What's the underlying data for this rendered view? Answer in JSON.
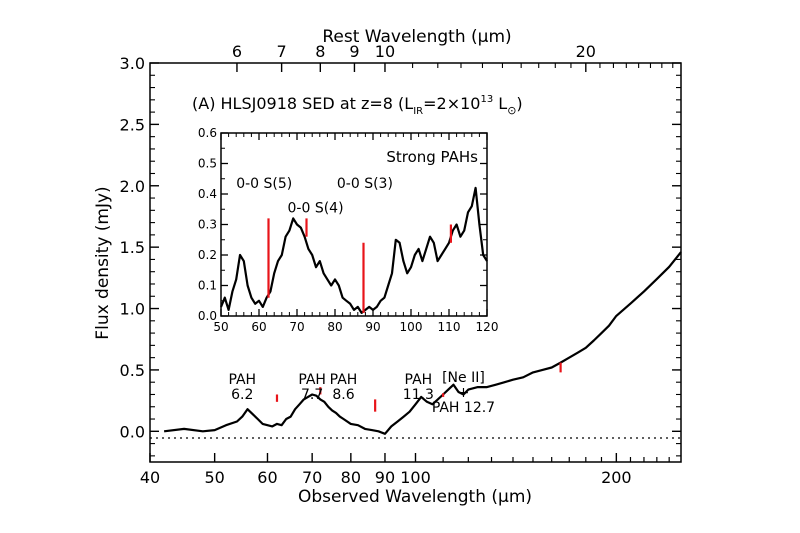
{
  "chart_data": [
    {
      "type": "line",
      "title": "(A) HLSJ0918 SED at z=8 (L",
      "title_sub": "IR",
      "title_mid": "=2×10",
      "title_sup": "13",
      "title_end": " L",
      "title_sun": "⊙",
      "title_close": ")",
      "xlabel": "Observed Wavelength (μm)",
      "ylabel": "Flux density (mJy)",
      "top_xlabel": "Rest Wavelength (μm)",
      "x_scale": "log",
      "xlim": [
        40,
        250
      ],
      "ylim": [
        -0.25,
        3.0
      ],
      "x_ticks": [
        40,
        50,
        60,
        70,
        80,
        90,
        100,
        200
      ],
      "y_ticks": [
        "0.0",
        "0.5",
        "1.0",
        "1.5",
        "2.0",
        "2.5",
        "3.0"
      ],
      "top_ticks": [
        6,
        7,
        8,
        9,
        10,
        20
      ],
      "grid": false,
      "zero_line": "dotted",
      "series": [
        {
          "x": [
            42,
            45,
            48,
            50,
            52,
            54,
            55,
            56,
            57,
            58,
            59,
            60,
            61,
            62,
            63,
            64,
            65,
            66,
            67,
            68,
            69,
            70,
            71,
            72,
            73,
            74,
            75,
            76,
            77,
            78,
            80,
            82,
            84,
            86,
            88,
            90,
            92,
            94,
            96,
            98,
            100,
            102,
            104,
            106,
            108,
            110,
            112,
            114,
            116,
            118,
            120,
            124,
            128,
            132,
            136,
            140,
            145,
            150,
            155,
            160,
            165,
            170,
            175,
            180,
            185,
            190,
            195,
            200,
            210,
            220,
            230,
            240,
            250
          ],
          "y": [
            0.0,
            0.02,
            0.0,
            0.01,
            0.05,
            0.08,
            0.12,
            0.18,
            0.14,
            0.1,
            0.06,
            0.05,
            0.04,
            0.06,
            0.05,
            0.1,
            0.12,
            0.18,
            0.22,
            0.26,
            0.28,
            0.3,
            0.29,
            0.26,
            0.24,
            0.2,
            0.17,
            0.15,
            0.12,
            0.1,
            0.06,
            0.05,
            0.02,
            0.01,
            0.0,
            -0.02,
            0.04,
            0.08,
            0.12,
            0.16,
            0.22,
            0.28,
            0.24,
            0.22,
            0.26,
            0.3,
            0.34,
            0.38,
            0.32,
            0.3,
            0.34,
            0.36,
            0.36,
            0.38,
            0.4,
            0.42,
            0.44,
            0.48,
            0.5,
            0.52,
            0.56,
            0.6,
            0.64,
            0.68,
            0.74,
            0.8,
            0.86,
            0.94,
            1.04,
            1.14,
            1.24,
            1.34,
            1.46
          ]
        }
      ],
      "red_lines": [
        {
          "x": 62,
          "y0": 0.24,
          "y1": 0.3
        },
        {
          "x": 72,
          "y0": 0.3,
          "y1": 0.36
        },
        {
          "x": 87,
          "y0": 0.16,
          "y1": 0.26
        },
        {
          "x": 110,
          "y0": 0.28,
          "y1": 0.31
        },
        {
          "x": 165,
          "y0": 0.48,
          "y1": 0.56
        }
      ],
      "annotations": [
        {
          "lines": [
            "PAH",
            "6.2"
          ],
          "x": 55
        },
        {
          "lines": [
            "PAH",
            "7.7"
          ],
          "x": 70
        },
        {
          "lines": [
            "PAH",
            "8.6"
          ],
          "x": 78
        },
        {
          "lines": [
            "PAH",
            "11.3"
          ],
          "x": 101
        },
        {
          "lines": [
            "[Ne II]",
            "+",
            "PAH 12.7"
          ],
          "x": 118
        }
      ]
    },
    {
      "type": "line",
      "label": "Strong PAHs",
      "xlim": [
        50,
        120
      ],
      "ylim": [
        0.0,
        0.6
      ],
      "x_ticks": [
        "50",
        "60",
        "70",
        "80",
        "90",
        "100",
        "110",
        "120"
      ],
      "y_ticks": [
        "0.0",
        "0.1",
        "0.2",
        "0.3",
        "0.4",
        "0.5",
        "0.6"
      ],
      "series": [
        {
          "x": [
            50,
            51,
            52,
            53,
            54,
            55,
            56,
            57,
            58,
            59,
            60,
            61,
            62,
            63,
            64,
            65,
            66,
            67,
            68,
            69,
            70,
            71,
            72,
            73,
            74,
            75,
            76,
            77,
            78,
            79,
            80,
            81,
            82,
            83,
            84,
            85,
            86,
            87,
            88,
            89,
            90,
            91,
            92,
            93,
            94,
            95,
            96,
            97,
            98,
            99,
            100,
            101,
            102,
            103,
            104,
            105,
            106,
            107,
            108,
            109,
            110,
            111,
            112,
            113,
            114,
            115,
            116,
            117,
            118,
            119,
            120
          ],
          "y": [
            0.03,
            0.06,
            0.02,
            0.08,
            0.12,
            0.2,
            0.18,
            0.1,
            0.06,
            0.04,
            0.05,
            0.03,
            0.06,
            0.08,
            0.14,
            0.18,
            0.2,
            0.26,
            0.28,
            0.32,
            0.3,
            0.29,
            0.26,
            0.22,
            0.2,
            0.16,
            0.18,
            0.14,
            0.12,
            0.1,
            0.12,
            0.1,
            0.06,
            0.05,
            0.04,
            0.02,
            0.03,
            0.01,
            0.02,
            0.03,
            0.02,
            0.03,
            0.05,
            0.06,
            0.1,
            0.14,
            0.25,
            0.24,
            0.18,
            0.14,
            0.16,
            0.2,
            0.22,
            0.18,
            0.22,
            0.26,
            0.24,
            0.18,
            0.2,
            0.22,
            0.24,
            0.28,
            0.3,
            0.26,
            0.28,
            0.34,
            0.36,
            0.42,
            0.3,
            0.2,
            0.18
          ]
        }
      ],
      "red_lines": [
        {
          "x": 62.5,
          "y0": 0.06,
          "y1": 0.32
        },
        {
          "x": 72.5,
          "y0": 0.26,
          "y1": 0.32
        },
        {
          "x": 87.5,
          "y0": 0.01,
          "y1": 0.24
        },
        {
          "x": 110.5,
          "y0": 0.24,
          "y1": 0.3
        }
      ],
      "line_labels": [
        {
          "text": "0-0 S(5)",
          "x": 54,
          "y": 0.42
        },
        {
          "text": "0-0 S(4)",
          "x": 67.5,
          "y": 0.34
        },
        {
          "text": "0-0 S(3)",
          "x": 80.5,
          "y": 0.42
        }
      ]
    }
  ]
}
